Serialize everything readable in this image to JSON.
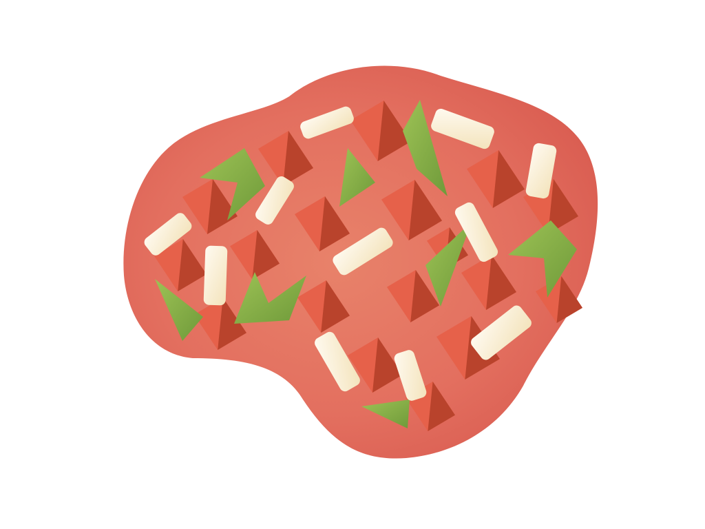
{
  "illustration": {
    "subject": "salsa-blob",
    "colors": {
      "background": "#ffffff",
      "blob_light": "#e8826a",
      "blob_mid": "#e36f5f",
      "blob_dark": "#d85a4f",
      "tomato_light": "#e6614a",
      "tomato_dark": "#b9432c",
      "pepper_light": "#9dc255",
      "pepper_dark": "#6f9a3a",
      "onion_light": "#fffaf0",
      "onion_dark": "#f3e3bb"
    }
  }
}
